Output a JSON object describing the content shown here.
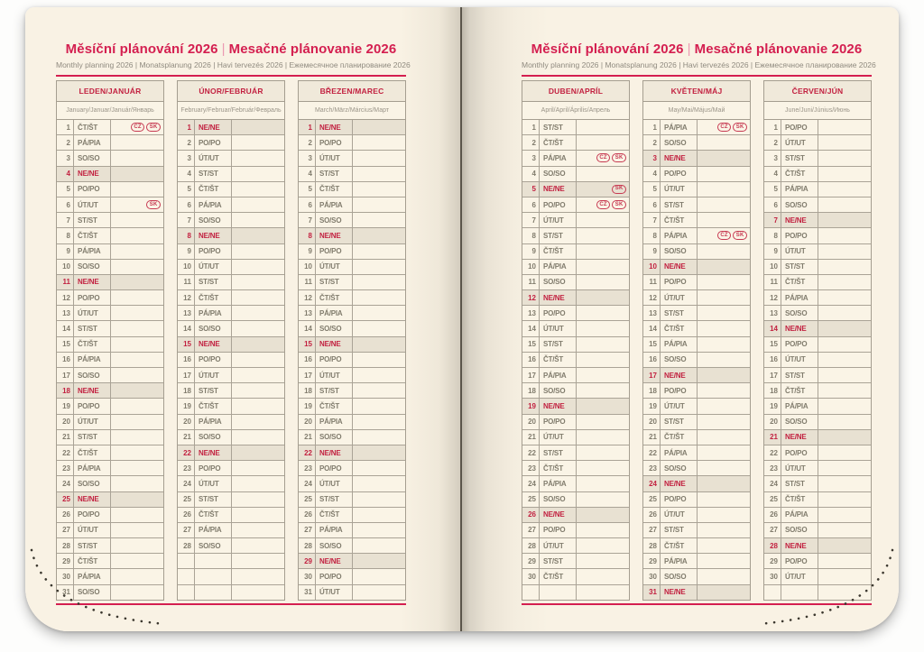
{
  "page_title": {
    "title_cz": "Měsíční plánování 2026",
    "separator": "|",
    "title_sk": "Mesačné plánovanie 2026",
    "subtitle": "Monthly planning 2026 | Monatsplanung 2026 | Havi tervezés 2026 | Ежемесячное планирование 2026"
  },
  "colors": {
    "accent_pink": "#d41f50",
    "month_red": "#c22140",
    "highlight_row_bg": "#e8e1d2",
    "page_bg": "#f9f2e4",
    "grid_line": "#a59e90",
    "body_text": "#817c6d"
  },
  "weekday_legend": {
    "monday": "PO/PO",
    "tuesday": "ÚT/UT",
    "wednesday": "ST/ST",
    "thursday": "ČT/ŠT",
    "friday": "PÁ/PIA",
    "saturday": "SO/SO",
    "sunday": "NE/NE"
  },
  "months": [
    {
      "name": "LEDEN/JANUÁR",
      "subtitle": "January/Januar/Január/Январь",
      "days": [
        {
          "day": 1,
          "weekday": "ČT/ŠT",
          "badges": [
            "CZ",
            "SK"
          ]
        },
        {
          "day": 2,
          "weekday": "PÁ/PIA"
        },
        {
          "day": 3,
          "weekday": "SO/SO"
        },
        {
          "day": 4,
          "weekday": "NE/NE",
          "highlight": true
        },
        {
          "day": 5,
          "weekday": "PO/PO"
        },
        {
          "day": 6,
          "weekday": "ÚT/UT",
          "badges": [
            "SK"
          ]
        },
        {
          "day": 7,
          "weekday": "ST/ST"
        },
        {
          "day": 8,
          "weekday": "ČT/ŠT"
        },
        {
          "day": 9,
          "weekday": "PÁ/PIA"
        },
        {
          "day": 10,
          "weekday": "SO/SO"
        },
        {
          "day": 11,
          "weekday": "NE/NE",
          "highlight": true
        },
        {
          "day": 12,
          "weekday": "PO/PO"
        },
        {
          "day": 13,
          "weekday": "ÚT/UT"
        },
        {
          "day": 14,
          "weekday": "ST/ST"
        },
        {
          "day": 15,
          "weekday": "ČT/ŠT"
        },
        {
          "day": 16,
          "weekday": "PÁ/PIA"
        },
        {
          "day": 17,
          "weekday": "SO/SO"
        },
        {
          "day": 18,
          "weekday": "NE/NE",
          "highlight": true
        },
        {
          "day": 19,
          "weekday": "PO/PO"
        },
        {
          "day": 20,
          "weekday": "ÚT/UT"
        },
        {
          "day": 21,
          "weekday": "ST/ST"
        },
        {
          "day": 22,
          "weekday": "ČT/ŠT"
        },
        {
          "day": 23,
          "weekday": "PÁ/PIA"
        },
        {
          "day": 24,
          "weekday": "SO/SO"
        },
        {
          "day": 25,
          "weekday": "NE/NE",
          "highlight": true
        },
        {
          "day": 26,
          "weekday": "PO/PO"
        },
        {
          "day": 27,
          "weekday": "ÚT/UT"
        },
        {
          "day": 28,
          "weekday": "ST/ST"
        },
        {
          "day": 29,
          "weekday": "ČT/ŠT"
        },
        {
          "day": 30,
          "weekday": "PÁ/PIA"
        },
        {
          "day": 31,
          "weekday": "SO/SO"
        }
      ]
    },
    {
      "name": "ÚNOR/FEBRUÁR",
      "subtitle": "February/Februar/Február/Февраль",
      "days": [
        {
          "day": 1,
          "weekday": "NE/NE",
          "highlight": true
        },
        {
          "day": 2,
          "weekday": "PO/PO"
        },
        {
          "day": 3,
          "weekday": "ÚT/UT"
        },
        {
          "day": 4,
          "weekday": "ST/ST"
        },
        {
          "day": 5,
          "weekday": "ČT/ŠT"
        },
        {
          "day": 6,
          "weekday": "PÁ/PIA"
        },
        {
          "day": 7,
          "weekday": "SO/SO"
        },
        {
          "day": 8,
          "weekday": "NE/NE",
          "highlight": true
        },
        {
          "day": 9,
          "weekday": "PO/PO"
        },
        {
          "day": 10,
          "weekday": "ÚT/UT"
        },
        {
          "day": 11,
          "weekday": "ST/ST"
        },
        {
          "day": 12,
          "weekday": "ČT/ŠT"
        },
        {
          "day": 13,
          "weekday": "PÁ/PIA"
        },
        {
          "day": 14,
          "weekday": "SO/SO"
        },
        {
          "day": 15,
          "weekday": "NE/NE",
          "highlight": true
        },
        {
          "day": 16,
          "weekday": "PO/PO"
        },
        {
          "day": 17,
          "weekday": "ÚT/UT"
        },
        {
          "day": 18,
          "weekday": "ST/ST"
        },
        {
          "day": 19,
          "weekday": "ČT/ŠT"
        },
        {
          "day": 20,
          "weekday": "PÁ/PIA"
        },
        {
          "day": 21,
          "weekday": "SO/SO"
        },
        {
          "day": 22,
          "weekday": "NE/NE",
          "highlight": true
        },
        {
          "day": 23,
          "weekday": "PO/PO"
        },
        {
          "day": 24,
          "weekday": "ÚT/UT"
        },
        {
          "day": 25,
          "weekday": "ST/ST"
        },
        {
          "day": 26,
          "weekday": "ČT/ŠT"
        },
        {
          "day": 27,
          "weekday": "PÁ/PIA"
        },
        {
          "day": 28,
          "weekday": "SO/SO"
        }
      ]
    },
    {
      "name": "BŘEZEN/MAREC",
      "subtitle": "March/März/Március/Март",
      "days": [
        {
          "day": 1,
          "weekday": "NE/NE",
          "highlight": true
        },
        {
          "day": 2,
          "weekday": "PO/PO"
        },
        {
          "day": 3,
          "weekday": "ÚT/UT"
        },
        {
          "day": 4,
          "weekday": "ST/ST"
        },
        {
          "day": 5,
          "weekday": "ČT/ŠT"
        },
        {
          "day": 6,
          "weekday": "PÁ/PIA"
        },
        {
          "day": 7,
          "weekday": "SO/SO"
        },
        {
          "day": 8,
          "weekday": "NE/NE",
          "highlight": true
        },
        {
          "day": 9,
          "weekday": "PO/PO"
        },
        {
          "day": 10,
          "weekday": "ÚT/UT"
        },
        {
          "day": 11,
          "weekday": "ST/ST"
        },
        {
          "day": 12,
          "weekday": "ČT/ŠT"
        },
        {
          "day": 13,
          "weekday": "PÁ/PIA"
        },
        {
          "day": 14,
          "weekday": "SO/SO"
        },
        {
          "day": 15,
          "weekday": "NE/NE",
          "highlight": true
        },
        {
          "day": 16,
          "weekday": "PO/PO"
        },
        {
          "day": 17,
          "weekday": "ÚT/UT"
        },
        {
          "day": 18,
          "weekday": "ST/ST"
        },
        {
          "day": 19,
          "weekday": "ČT/ŠT"
        },
        {
          "day": 20,
          "weekday": "PÁ/PIA"
        },
        {
          "day": 21,
          "weekday": "SO/SO"
        },
        {
          "day": 22,
          "weekday": "NE/NE",
          "highlight": true
        },
        {
          "day": 23,
          "weekday": "PO/PO"
        },
        {
          "day": 24,
          "weekday": "ÚT/UT"
        },
        {
          "day": 25,
          "weekday": "ST/ST"
        },
        {
          "day": 26,
          "weekday": "ČT/ŠT"
        },
        {
          "day": 27,
          "weekday": "PÁ/PIA"
        },
        {
          "day": 28,
          "weekday": "SO/SO"
        },
        {
          "day": 29,
          "weekday": "NE/NE",
          "highlight": true
        },
        {
          "day": 30,
          "weekday": "PO/PO"
        },
        {
          "day": 31,
          "weekday": "ÚT/UT"
        }
      ]
    },
    {
      "name": "DUBEN/APRÍL",
      "subtitle": "April/April/Április/Апрель",
      "days": [
        {
          "day": 1,
          "weekday": "ST/ST"
        },
        {
          "day": 2,
          "weekday": "ČT/ŠT"
        },
        {
          "day": 3,
          "weekday": "PÁ/PIA",
          "badges": [
            "CZ",
            "SK"
          ]
        },
        {
          "day": 4,
          "weekday": "SO/SO"
        },
        {
          "day": 5,
          "weekday": "NE/NE",
          "highlight": true,
          "badges": [
            "SK"
          ]
        },
        {
          "day": 6,
          "weekday": "PO/PO",
          "badges": [
            "CZ",
            "SK"
          ]
        },
        {
          "day": 7,
          "weekday": "ÚT/UT"
        },
        {
          "day": 8,
          "weekday": "ST/ST"
        },
        {
          "day": 9,
          "weekday": "ČT/ŠT"
        },
        {
          "day": 10,
          "weekday": "PÁ/PIA"
        },
        {
          "day": 11,
          "weekday": "SO/SO"
        },
        {
          "day": 12,
          "weekday": "NE/NE",
          "highlight": true
        },
        {
          "day": 13,
          "weekday": "PO/PO"
        },
        {
          "day": 14,
          "weekday": "ÚT/UT"
        },
        {
          "day": 15,
          "weekday": "ST/ST"
        },
        {
          "day": 16,
          "weekday": "ČT/ŠT"
        },
        {
          "day": 17,
          "weekday": "PÁ/PIA"
        },
        {
          "day": 18,
          "weekday": "SO/SO"
        },
        {
          "day": 19,
          "weekday": "NE/NE",
          "highlight": true
        },
        {
          "day": 20,
          "weekday": "PO/PO"
        },
        {
          "day": 21,
          "weekday": "ÚT/UT"
        },
        {
          "day": 22,
          "weekday": "ST/ST"
        },
        {
          "day": 23,
          "weekday": "ČT/ŠT"
        },
        {
          "day": 24,
          "weekday": "PÁ/PIA"
        },
        {
          "day": 25,
          "weekday": "SO/SO"
        },
        {
          "day": 26,
          "weekday": "NE/NE",
          "highlight": true
        },
        {
          "day": 27,
          "weekday": "PO/PO"
        },
        {
          "day": 28,
          "weekday": "ÚT/UT"
        },
        {
          "day": 29,
          "weekday": "ST/ST"
        },
        {
          "day": 30,
          "weekday": "ČT/ŠT"
        }
      ]
    },
    {
      "name": "KVĚTEN/MÁJ",
      "subtitle": "May/Mai/Május/Май",
      "days": [
        {
          "day": 1,
          "weekday": "PÁ/PIA",
          "badges": [
            "CZ",
            "SK"
          ]
        },
        {
          "day": 2,
          "weekday": "SO/SO"
        },
        {
          "day": 3,
          "weekday": "NE/NE",
          "highlight": true
        },
        {
          "day": 4,
          "weekday": "PO/PO"
        },
        {
          "day": 5,
          "weekday": "ÚT/UT"
        },
        {
          "day": 6,
          "weekday": "ST/ST"
        },
        {
          "day": 7,
          "weekday": "ČT/ŠT"
        },
        {
          "day": 8,
          "weekday": "PÁ/PIA",
          "badges": [
            "CZ",
            "SK"
          ]
        },
        {
          "day": 9,
          "weekday": "SO/SO"
        },
        {
          "day": 10,
          "weekday": "NE/NE",
          "highlight": true
        },
        {
          "day": 11,
          "weekday": "PO/PO"
        },
        {
          "day": 12,
          "weekday": "ÚT/UT"
        },
        {
          "day": 13,
          "weekday": "ST/ST"
        },
        {
          "day": 14,
          "weekday": "ČT/ŠT"
        },
        {
          "day": 15,
          "weekday": "PÁ/PIA"
        },
        {
          "day": 16,
          "weekday": "SO/SO"
        },
        {
          "day": 17,
          "weekday": "NE/NE",
          "highlight": true
        },
        {
          "day": 18,
          "weekday": "PO/PO"
        },
        {
          "day": 19,
          "weekday": "ÚT/UT"
        },
        {
          "day": 20,
          "weekday": "ST/ST"
        },
        {
          "day": 21,
          "weekday": "ČT/ŠT"
        },
        {
          "day": 22,
          "weekday": "PÁ/PIA"
        },
        {
          "day": 23,
          "weekday": "SO/SO"
        },
        {
          "day": 24,
          "weekday": "NE/NE",
          "highlight": true
        },
        {
          "day": 25,
          "weekday": "PO/PO"
        },
        {
          "day": 26,
          "weekday": "ÚT/UT"
        },
        {
          "day": 27,
          "weekday": "ST/ST"
        },
        {
          "day": 28,
          "weekday": "ČT/ŠT"
        },
        {
          "day": 29,
          "weekday": "PÁ/PIA"
        },
        {
          "day": 30,
          "weekday": "SO/SO"
        },
        {
          "day": 31,
          "weekday": "NE/NE",
          "highlight": true
        }
      ]
    },
    {
      "name": "ČERVEN/JÚN",
      "subtitle": "June/Juni/Június/Июнь",
      "days": [
        {
          "day": 1,
          "weekday": "PO/PO"
        },
        {
          "day": 2,
          "weekday": "ÚT/UT"
        },
        {
          "day": 3,
          "weekday": "ST/ST"
        },
        {
          "day": 4,
          "weekday": "ČT/ŠT"
        },
        {
          "day": 5,
          "weekday": "PÁ/PIA"
        },
        {
          "day": 6,
          "weekday": "SO/SO"
        },
        {
          "day": 7,
          "weekday": "NE/NE",
          "highlight": true
        },
        {
          "day": 8,
          "weekday": "PO/PO"
        },
        {
          "day": 9,
          "weekday": "ÚT/UT"
        },
        {
          "day": 10,
          "weekday": "ST/ST"
        },
        {
          "day": 11,
          "weekday": "ČT/ŠT"
        },
        {
          "day": 12,
          "weekday": "PÁ/PIA"
        },
        {
          "day": 13,
          "weekday": "SO/SO"
        },
        {
          "day": 14,
          "weekday": "NE/NE",
          "highlight": true
        },
        {
          "day": 15,
          "weekday": "PO/PO"
        },
        {
          "day": 16,
          "weekday": "ÚT/UT"
        },
        {
          "day": 17,
          "weekday": "ST/ST"
        },
        {
          "day": 18,
          "weekday": "ČT/ŠT"
        },
        {
          "day": 19,
          "weekday": "PÁ/PIA"
        },
        {
          "day": 20,
          "weekday": "SO/SO"
        },
        {
          "day": 21,
          "weekday": "NE/NE",
          "highlight": true
        },
        {
          "day": 22,
          "weekday": "PO/PO"
        },
        {
          "day": 23,
          "weekday": "ÚT/UT"
        },
        {
          "day": 24,
          "weekday": "ST/ST"
        },
        {
          "day": 25,
          "weekday": "ČT/ŠT"
        },
        {
          "day": 26,
          "weekday": "PÁ/PIA"
        },
        {
          "day": 27,
          "weekday": "SO/SO"
        },
        {
          "day": 28,
          "weekday": "NE/NE",
          "highlight": true
        },
        {
          "day": 29,
          "weekday": "PO/PO"
        },
        {
          "day": 30,
          "weekday": "ÚT/UT"
        }
      ]
    }
  ]
}
